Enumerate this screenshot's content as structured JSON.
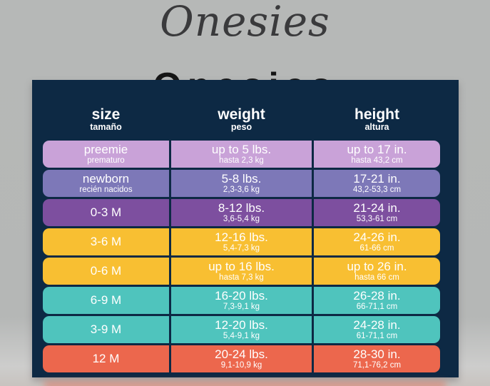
{
  "page": {
    "title": "Onesies",
    "background_title": "Onesies"
  },
  "colors": {
    "page_background": "#b6b8b7",
    "table_background": "#0d2944",
    "title_text": "#3a3a3c",
    "cell_text": "#ffffff",
    "row_lavender": "#c9a2d8",
    "row_periwinkle": "#7d78b8",
    "row_purple": "#7d4f9f",
    "row_gold": "#f8bf32",
    "row_teal": "#4fc4bd",
    "row_coral": "#ec674d"
  },
  "header": {
    "columns": [
      {
        "label": "size",
        "sub": "tamaño"
      },
      {
        "label": "weight",
        "sub": "peso"
      },
      {
        "label": "height",
        "sub": "altura"
      }
    ]
  },
  "chart_data": {
    "type": "table",
    "title": "Onesies",
    "columns": [
      "size / tamaño",
      "weight / peso",
      "height / altura"
    ],
    "rows": [
      {
        "color": "#c9a2d8",
        "size_main": "preemie",
        "size_sub": "prematuro",
        "weight_main": "up to 5 lbs.",
        "weight_sub": "hasta 2,3 kg",
        "height_main": "up to 17 in.",
        "height_sub": "hasta 43,2 cm"
      },
      {
        "color": "#7d78b8",
        "size_main": "newborn",
        "size_sub": "recién nacidos",
        "weight_main": "5-8 lbs.",
        "weight_sub": "2,3-3,6 kg",
        "height_main": "17-21 in.",
        "height_sub": "43,2-53,3 cm"
      },
      {
        "color": "#7d4f9f",
        "size_main": "0-3 M",
        "size_sub": "",
        "weight_main": "8-12 lbs.",
        "weight_sub": "3,6-5,4 kg",
        "height_main": "21-24 in.",
        "height_sub": "53,3-61 cm"
      },
      {
        "color": "#f8bf32",
        "size_main": "3-6 M",
        "size_sub": "",
        "weight_main": "12-16 lbs.",
        "weight_sub": "5,4-7,3 kg",
        "height_main": "24-26 in.",
        "height_sub": "61-66 cm"
      },
      {
        "color": "#f8bf32",
        "size_main": "0-6 M",
        "size_sub": "",
        "weight_main": "up to 16 lbs.",
        "weight_sub": "hasta 7,3 kg",
        "height_main": "up to 26 in.",
        "height_sub": "hasta 66 cm"
      },
      {
        "color": "#4fc4bd",
        "size_main": "6-9 M",
        "size_sub": "",
        "weight_main": "16-20 lbs.",
        "weight_sub": "7,3-9,1 kg",
        "height_main": "26-28 in.",
        "height_sub": "66-71,1 cm"
      },
      {
        "color": "#4fc4bd",
        "size_main": "3-9 M",
        "size_sub": "",
        "weight_main": "12-20 lbs.",
        "weight_sub": "5,4-9,1 kg",
        "height_main": "24-28 in.",
        "height_sub": "61-71,1 cm"
      },
      {
        "color": "#ec674d",
        "size_main": "12 M",
        "size_sub": "",
        "weight_main": "20-24 lbs.",
        "weight_sub": "9,1-10,9 kg",
        "height_main": "28-30 in.",
        "height_sub": "71,1-76,2 cm"
      }
    ]
  }
}
